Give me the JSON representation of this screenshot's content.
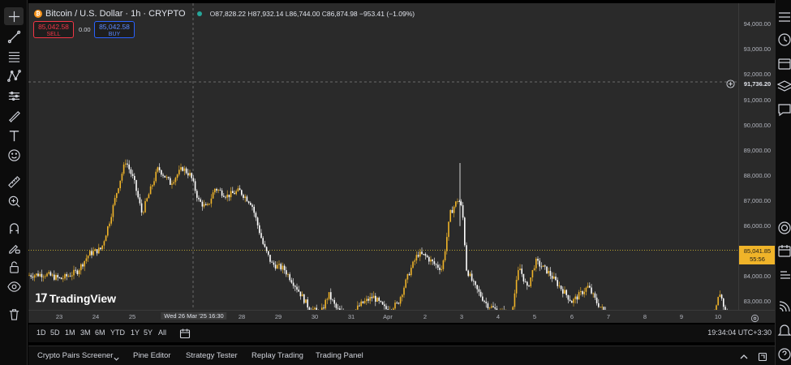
{
  "symbol": {
    "title": "Bitcoin / U.S. Dollar · 1h · CRYPTO",
    "open_label": "O",
    "open": "87,828.22",
    "high_label": "H",
    "high": "87,932.14",
    "low_label": "L",
    "low": "86,744.00",
    "close_label": "C",
    "close": "86,874.98",
    "change": "−953.41 (−1.09%)"
  },
  "trade": {
    "sell_price": "85,042.58",
    "sell_label": "SELL",
    "spread": "0.00",
    "buy_price": "85,042.58",
    "buy_label": "BUY"
  },
  "watermark": "TradingView",
  "price_axis": {
    "ticks": [
      "94,000.00",
      "93,000.00",
      "92,000.00",
      "91,000.00",
      "90,000.00",
      "89,000.00",
      "88,000.00",
      "87,000.00",
      "86,000.00",
      "85,000.00",
      "84,000.00",
      "83,000.00"
    ],
    "crosshair_price": "91,736.20",
    "last_price": "85,041.85",
    "countdown": "55:56"
  },
  "time_axis": {
    "labels": [
      "23",
      "24",
      "25",
      "28",
      "29",
      "30",
      "31",
      "Apr",
      "2",
      "3",
      "4",
      "5",
      "6",
      "7",
      "8",
      "9",
      "10"
    ],
    "crosshair_time": "Wed 26 Mar '25   16:30"
  },
  "range_buttons": [
    "1D",
    "5D",
    "1M",
    "3M",
    "6M",
    "YTD",
    "1Y",
    "5Y",
    "All"
  ],
  "clock": "19:34:04 UTC+3:30",
  "bottom_tabs": [
    "Crypto Pairs Screener",
    "Pine Editor",
    "Strategy Tester",
    "Replay Trading",
    "Trading Panel"
  ],
  "icons": {
    "left_toolbar": [
      "crosshair-icon",
      "trend-line-icon",
      "fib-icon",
      "pattern-icon",
      "forecast-icon",
      "brush-icon",
      "text-icon",
      "emoji-icon",
      "ruler-icon",
      "zoom-in-icon",
      "magnet-icon",
      "lock-draw-icon",
      "lock-icon",
      "eye-icon",
      "trash-icon"
    ],
    "right_toolbar": [
      "watchlist-icon",
      "alerts-icon",
      "data-window-icon",
      "layers-icon",
      "chat-icon",
      "target-icon",
      "calendar-icon",
      "ideas-icon",
      "signal-icon",
      "bell-icon",
      "help-icon"
    ]
  },
  "colors": {
    "candle_up": "#f0b429",
    "candle_down": "#ffffff",
    "sell": "#f23645",
    "buy": "#2962ff",
    "background": "#2a2a2a"
  }
}
